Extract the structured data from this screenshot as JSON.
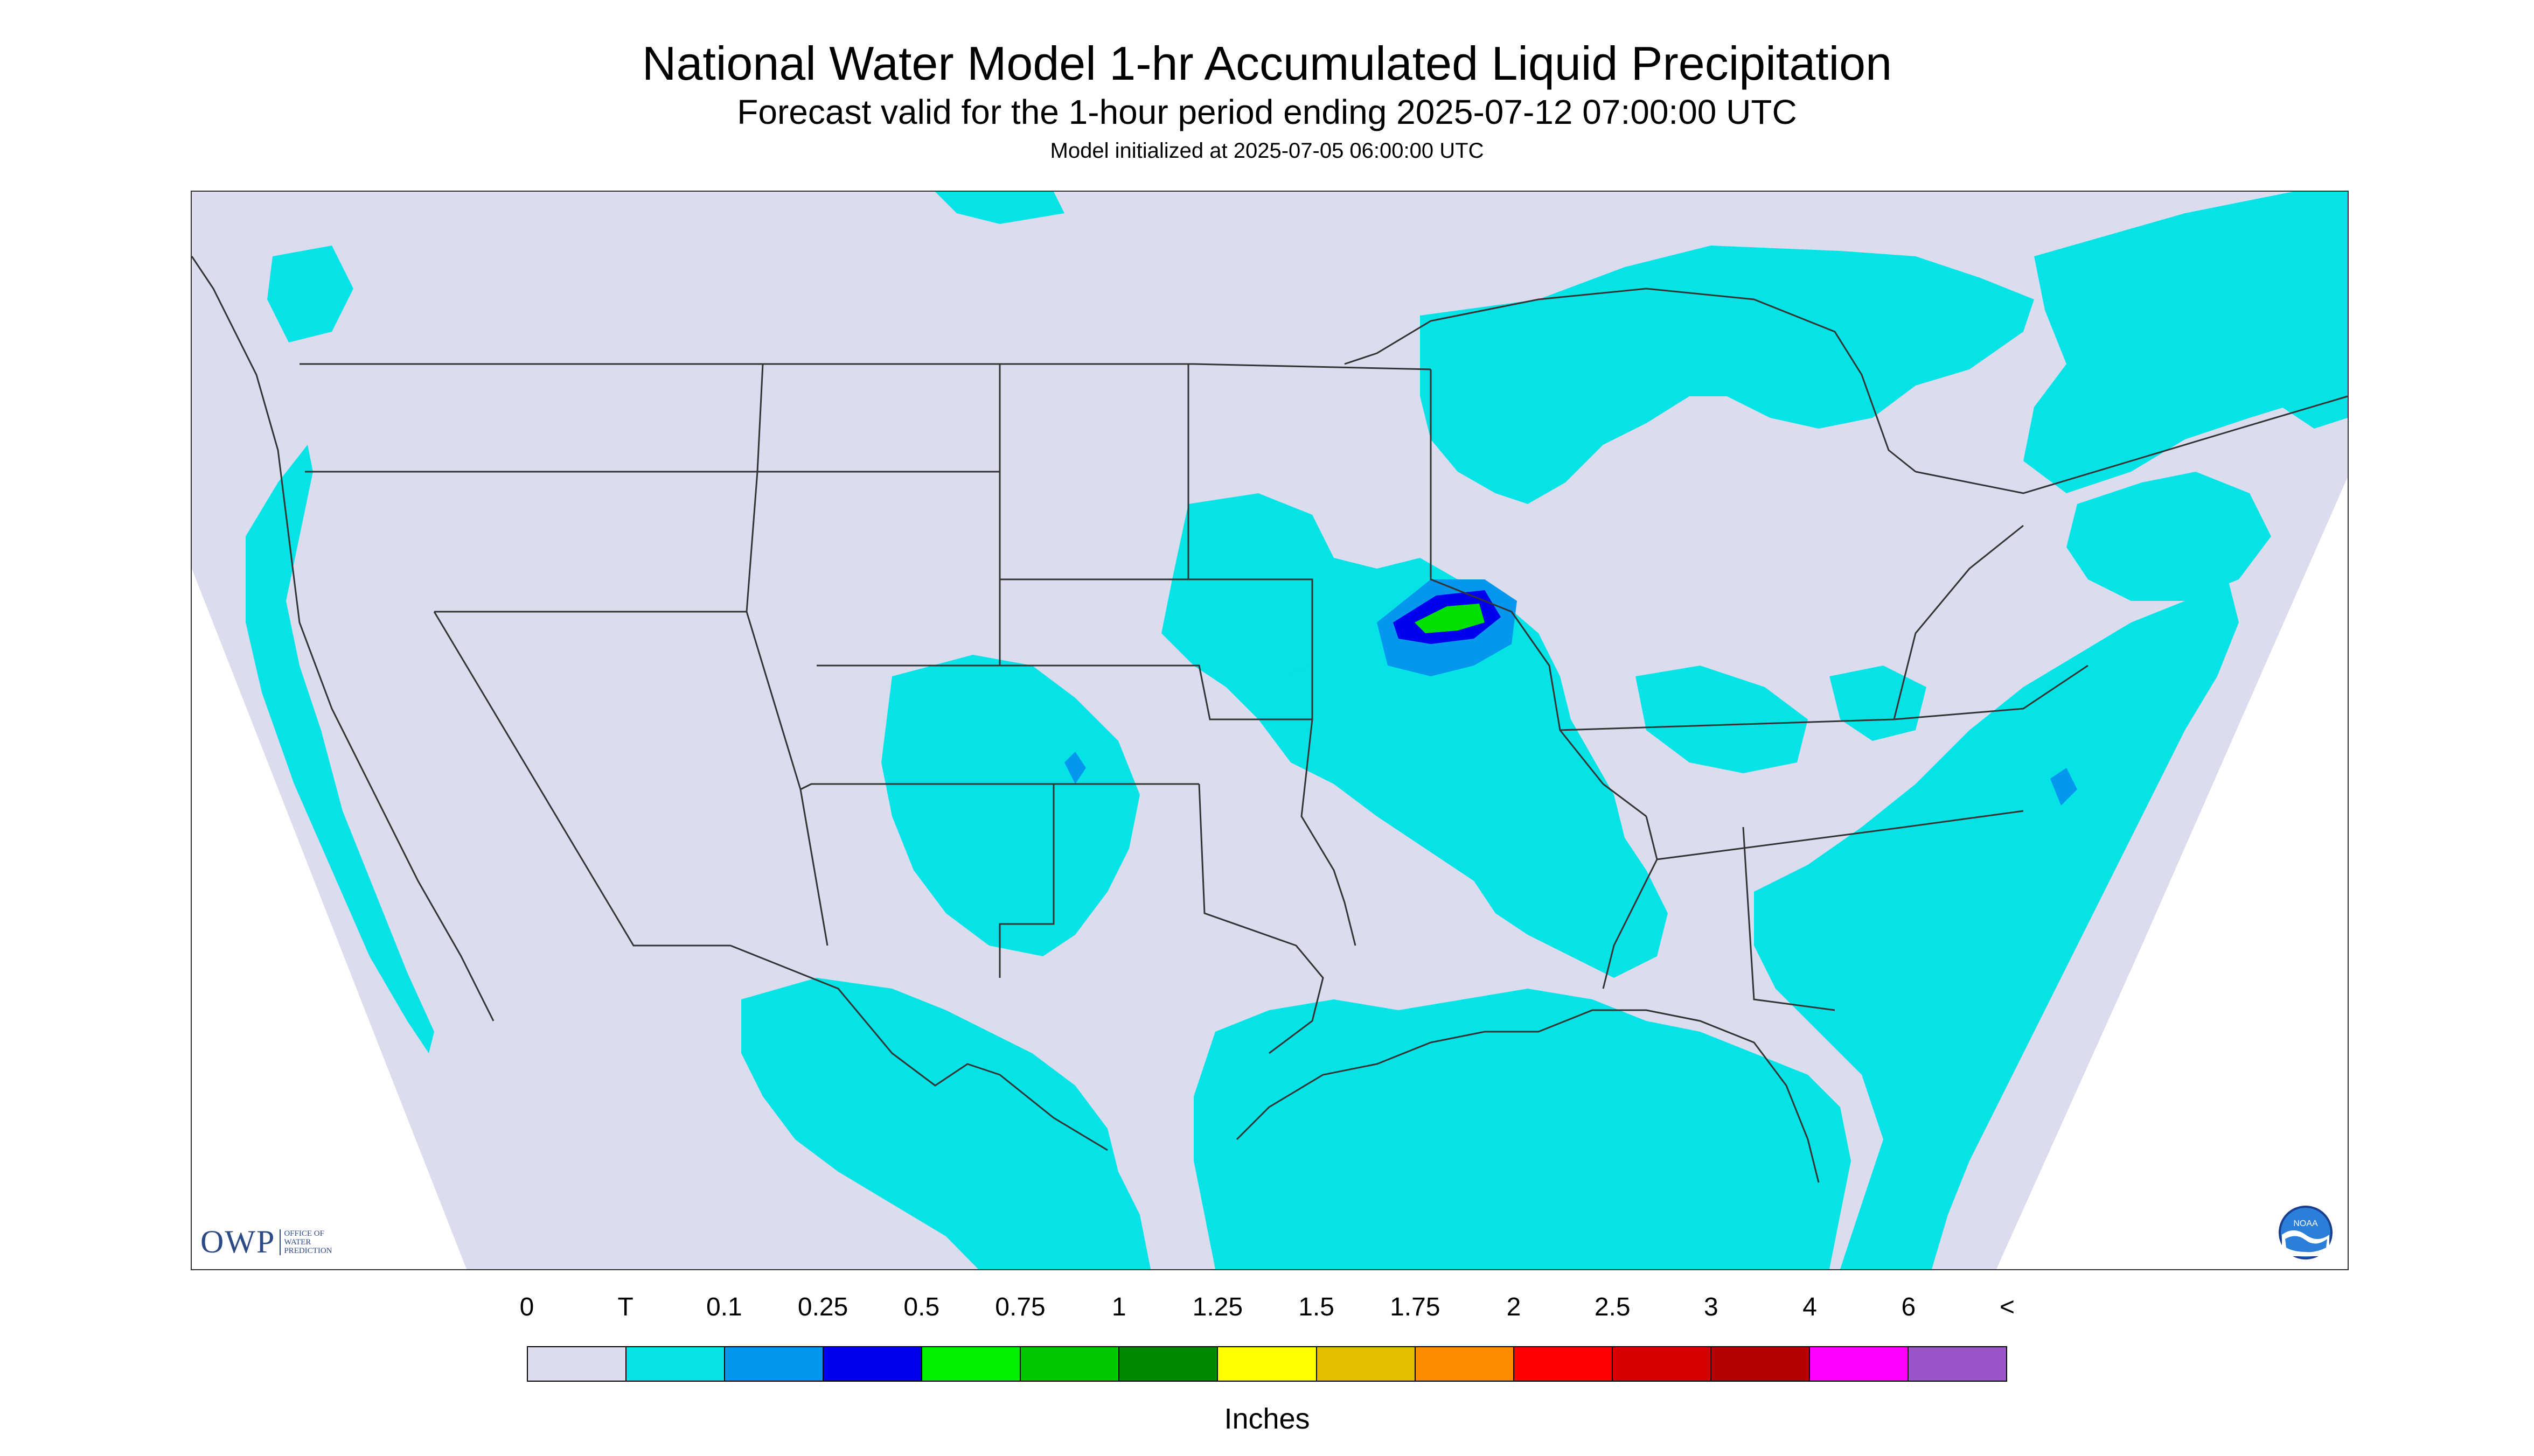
{
  "header": {
    "title": "National Water Model 1-hr Accumulated Liquid Precipitation",
    "subtitle": "Forecast valid for the 1-hour period ending 2025-07-12 07:00:00 UTC",
    "init": "Model initialized at 2025-07-05 06:00:00 UTC"
  },
  "map": {
    "background_color": "#dcdcef",
    "outside_color": "#ffffff",
    "precip_trace_color": "#05e3e6",
    "precip_025_color": "#0596ee",
    "precip_05_color": "#0000ee",
    "precip_075_color": "#00e000",
    "boundary_color": "#333333",
    "logo_left": {
      "mark": "OWP",
      "lines": [
        "OFFICE OF",
        "WATER",
        "PREDICTION"
      ]
    },
    "logo_right": {
      "icon": "noaa-logo",
      "text": "NOAA"
    }
  },
  "legend": {
    "labels": [
      "0",
      "T",
      "0.1",
      "0.25",
      "0.5",
      "0.75",
      "1",
      "1.25",
      "1.5",
      "1.75",
      "2",
      "2.5",
      "3",
      "4",
      "6",
      "<"
    ],
    "colors": [
      "#dcdcef",
      "#05e3e6",
      "#0596ee",
      "#0000ee",
      "#00f000",
      "#00c800",
      "#008a00",
      "#ffff00",
      "#e3be00",
      "#ff8c00",
      "#ff0000",
      "#d80000",
      "#b40000",
      "#ff00ff",
      "#9a55c8"
    ],
    "units": "Inches"
  }
}
